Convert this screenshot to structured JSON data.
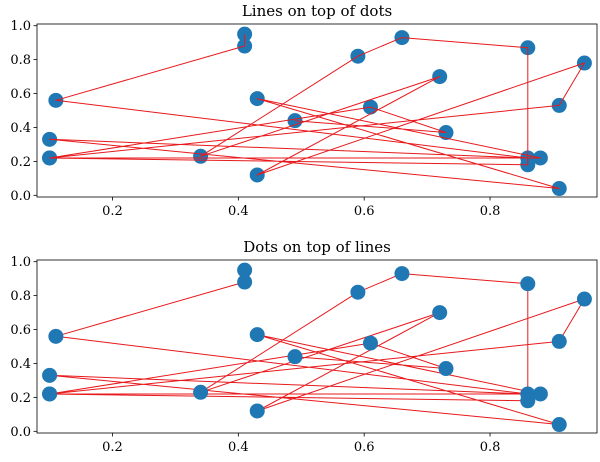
{
  "chart_data": [
    {
      "type": "scatter",
      "title": "Lines on top of dots",
      "xlabel": "",
      "ylabel": "",
      "xlim": [
        0.08,
        0.97
      ],
      "ylim": [
        -0.01,
        1.01
      ],
      "xticks": [
        "0.2",
        "0.4",
        "0.6",
        "0.8"
      ],
      "yticks": [
        "0.0",
        "0.2",
        "0.4",
        "0.6",
        "0.8",
        "1.0"
      ],
      "grid": false,
      "layering": "lines-over-dots",
      "line_color": "#e8191c",
      "dot_color": "#1f77b4",
      "points": [
        {
          "x": 0.41,
          "y": 0.95
        },
        {
          "x": 0.41,
          "y": 0.88
        },
        {
          "x": 0.11,
          "y": 0.56
        },
        {
          "x": 0.86,
          "y": 0.22
        },
        {
          "x": 0.1,
          "y": 0.33
        },
        {
          "x": 0.91,
          "y": 0.04
        },
        {
          "x": 0.43,
          "y": 0.57
        },
        {
          "x": 0.88,
          "y": 0.22
        },
        {
          "x": 0.1,
          "y": 0.22
        },
        {
          "x": 0.91,
          "y": 0.53
        },
        {
          "x": 0.95,
          "y": 0.78
        },
        {
          "x": 0.43,
          "y": 0.12
        },
        {
          "x": 0.72,
          "y": 0.7
        },
        {
          "x": 0.34,
          "y": 0.23
        },
        {
          "x": 0.59,
          "y": 0.82
        },
        {
          "x": 0.66,
          "y": 0.93
        },
        {
          "x": 0.86,
          "y": 0.87
        },
        {
          "x": 0.86,
          "y": 0.18
        },
        {
          "x": 0.1,
          "y": 0.22
        },
        {
          "x": 0.61,
          "y": 0.52
        },
        {
          "x": 0.73,
          "y": 0.37
        },
        {
          "x": 0.49,
          "y": 0.44
        }
      ]
    },
    {
      "type": "scatter",
      "title": "Dots on top of lines",
      "xlabel": "",
      "ylabel": "",
      "xlim": [
        0.08,
        0.97
      ],
      "ylim": [
        -0.01,
        1.01
      ],
      "xticks": [
        "0.2",
        "0.4",
        "0.6",
        "0.8"
      ],
      "yticks": [
        "0.0",
        "0.2",
        "0.4",
        "0.6",
        "0.8",
        "1.0"
      ],
      "grid": false,
      "layering": "dots-over-lines",
      "line_color": "#e8191c",
      "dot_color": "#1f77b4",
      "points": [
        {
          "x": 0.41,
          "y": 0.95
        },
        {
          "x": 0.41,
          "y": 0.88
        },
        {
          "x": 0.11,
          "y": 0.56
        },
        {
          "x": 0.86,
          "y": 0.22
        },
        {
          "x": 0.1,
          "y": 0.33
        },
        {
          "x": 0.91,
          "y": 0.04
        },
        {
          "x": 0.43,
          "y": 0.57
        },
        {
          "x": 0.88,
          "y": 0.22
        },
        {
          "x": 0.1,
          "y": 0.22
        },
        {
          "x": 0.91,
          "y": 0.53
        },
        {
          "x": 0.95,
          "y": 0.78
        },
        {
          "x": 0.43,
          "y": 0.12
        },
        {
          "x": 0.72,
          "y": 0.7
        },
        {
          "x": 0.34,
          "y": 0.23
        },
        {
          "x": 0.59,
          "y": 0.82
        },
        {
          "x": 0.66,
          "y": 0.93
        },
        {
          "x": 0.86,
          "y": 0.87
        },
        {
          "x": 0.86,
          "y": 0.18
        },
        {
          "x": 0.1,
          "y": 0.22
        },
        {
          "x": 0.61,
          "y": 0.52
        },
        {
          "x": 0.73,
          "y": 0.37
        },
        {
          "x": 0.49,
          "y": 0.44
        }
      ]
    }
  ]
}
